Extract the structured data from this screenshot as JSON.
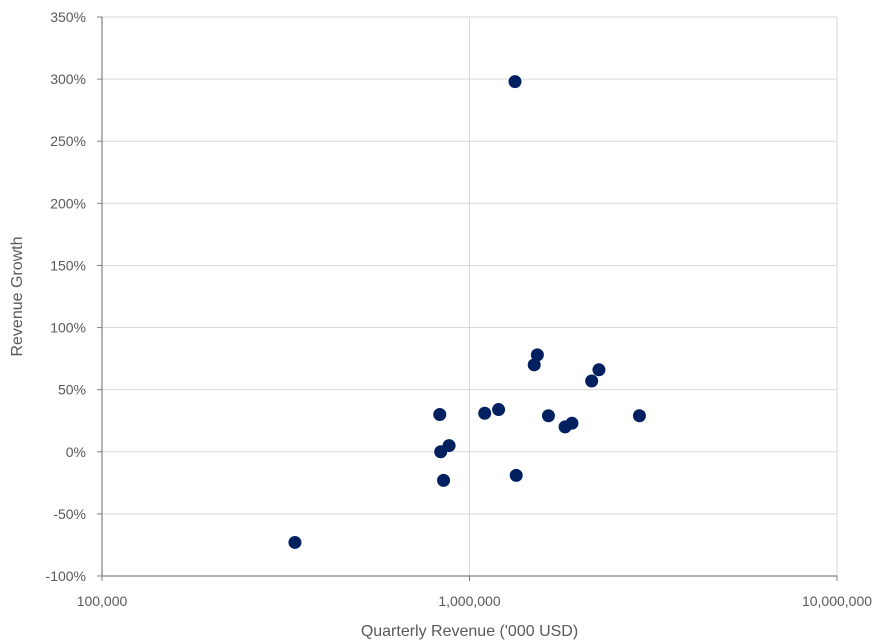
{
  "chart_data": {
    "type": "scatter",
    "title": "",
    "xlabel": "Quarterly Revenue ('000 USD)",
    "ylabel": "Revenue Growth",
    "x_scale": "log",
    "xlim": [
      100000,
      10000000
    ],
    "ylim": [
      -1.0,
      3.5
    ],
    "x_ticks": [
      100000,
      1000000,
      10000000
    ],
    "x_tick_labels": [
      "100,000",
      "1,000,000",
      "10,000,000"
    ],
    "y_ticks": [
      -1.0,
      -0.5,
      0.0,
      0.5,
      1.0,
      1.5,
      2.0,
      2.5,
      3.0,
      3.5
    ],
    "y_tick_labels": [
      "-100%",
      "-50%",
      "0%",
      "50%",
      "100%",
      "150%",
      "200%",
      "250%",
      "300%",
      "350%"
    ],
    "grid": true,
    "legend": "none",
    "marker_color": "#002060",
    "points": [
      {
        "x": 335000,
        "y": -0.73
      },
      {
        "x": 830000,
        "y": 0.3
      },
      {
        "x": 835000,
        "y": 0.0
      },
      {
        "x": 850000,
        "y": -0.23
      },
      {
        "x": 880000,
        "y": 0.05
      },
      {
        "x": 1100000,
        "y": 0.31
      },
      {
        "x": 1200000,
        "y": 0.34
      },
      {
        "x": 1330000,
        "y": 2.98
      },
      {
        "x": 1340000,
        "y": -0.19
      },
      {
        "x": 1500000,
        "y": 0.7
      },
      {
        "x": 1530000,
        "y": 0.78
      },
      {
        "x": 1640000,
        "y": 0.29
      },
      {
        "x": 1820000,
        "y": 0.2
      },
      {
        "x": 1900000,
        "y": 0.23
      },
      {
        "x": 2150000,
        "y": 0.57
      },
      {
        "x": 2250000,
        "y": 0.66
      },
      {
        "x": 2900000,
        "y": 0.29
      }
    ]
  }
}
